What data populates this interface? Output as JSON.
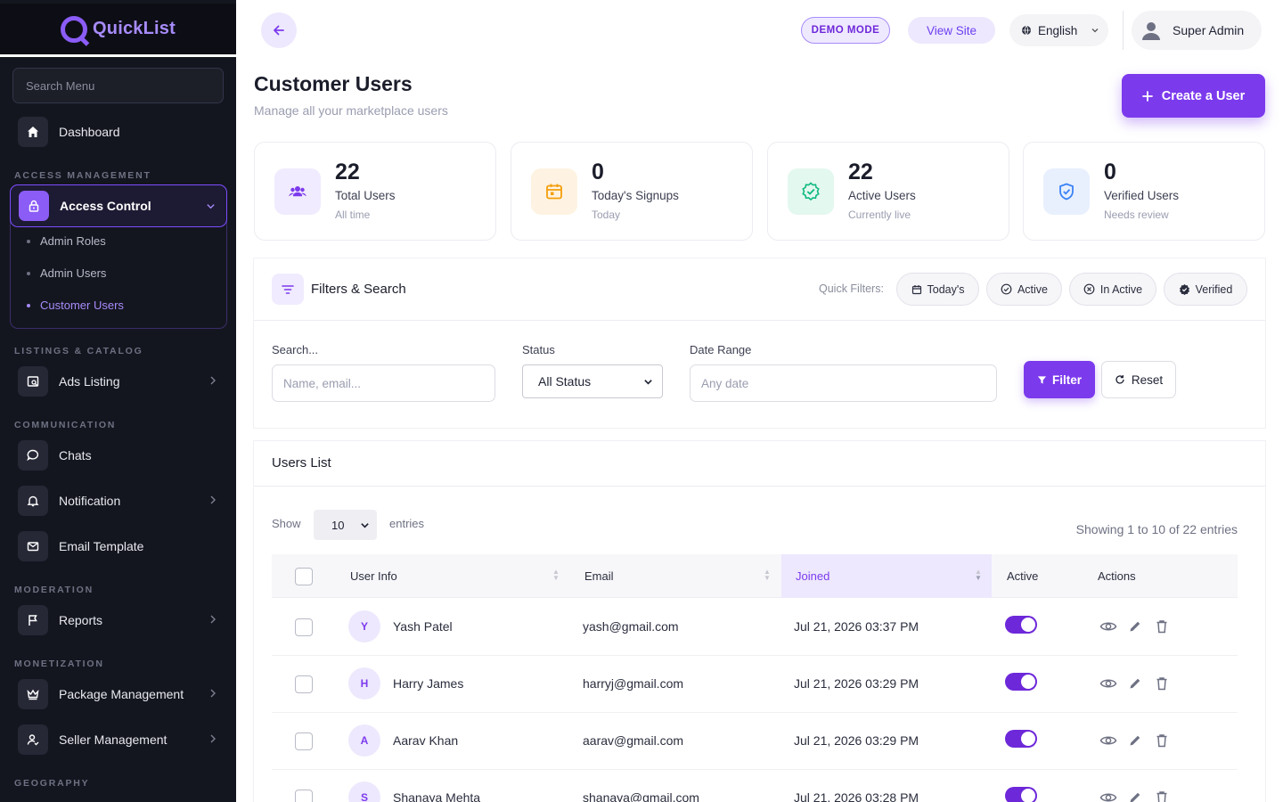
{
  "app": {
    "name": "QuickList"
  },
  "sidebar": {
    "search_placeholder": "Search Menu",
    "dashboard": "Dashboard",
    "sections": {
      "access": "ACCESS MANAGEMENT",
      "listings": "LISTINGS & CATALOG",
      "communication": "COMMUNICATION",
      "moderation": "MODERATION",
      "monetization": "MONETIZATION",
      "geography": "GEOGRAPHY"
    },
    "access_control": "Access Control",
    "sub_items": [
      "Admin Roles",
      "Admin Users",
      "Customer Users"
    ],
    "active_sub": "Customer Users",
    "items": {
      "ads_listing": "Ads Listing",
      "chats": "Chats",
      "notification": "Notification",
      "email_template": "Email Template",
      "reports": "Reports",
      "package_management": "Package Management",
      "seller_management": "Seller Management"
    }
  },
  "topbar": {
    "demo_mode": "DEMO MODE",
    "view_site": "View Site",
    "language": "English",
    "user_name": "Super Admin"
  },
  "header": {
    "title": "Customer Users",
    "subtitle": "Manage all your marketplace users",
    "create_button": "Create a User"
  },
  "stats": [
    {
      "value": "22",
      "label": "Total Users",
      "note": "All time",
      "icon": "users-icon",
      "color": "#7c3aed",
      "bg": "#f0ebfe"
    },
    {
      "value": "0",
      "label": "Today's Signups",
      "note": "Today",
      "icon": "calendar-icon",
      "color": "#f59e0b",
      "bg": "#fef3e2"
    },
    {
      "value": "22",
      "label": "Active Users",
      "note": "Currently live",
      "icon": "badge-check-icon",
      "color": "#10b981",
      "bg": "#e3f8ef"
    },
    {
      "value": "0",
      "label": "Verified Users",
      "note": "Needs review",
      "icon": "shield-check-icon",
      "color": "#3b82f6",
      "bg": "#e8f0fe"
    }
  ],
  "filters": {
    "title": "Filters & Search",
    "quick_label": "Quick Filters:",
    "quick": [
      "Today's",
      "Active",
      "In Active",
      "Verified"
    ],
    "search_label": "Search...",
    "search_placeholder": "Name, email...",
    "status_label": "Status",
    "status_value": "All Status",
    "date_label": "Date Range",
    "date_placeholder": "Any date",
    "filter_button": "Filter",
    "reset_button": "Reset"
  },
  "users_list": {
    "title": "Users List",
    "show_label": "Show",
    "entries_value": "10",
    "entries_label": "entries",
    "showing_info": "Showing 1 to 10 of 22 entries",
    "columns": [
      "User Info",
      "Email",
      "Joined",
      "Active",
      "Actions"
    ],
    "sorted_column": "Joined",
    "rows": [
      {
        "initial": "Y",
        "name": "Yash Patel",
        "email": "yash@gmail.com",
        "joined": "Jul 21, 2026 03:37 PM",
        "active": true
      },
      {
        "initial": "H",
        "name": "Harry James",
        "email": "harryj@gmail.com",
        "joined": "Jul 21, 2026 03:29 PM",
        "active": true
      },
      {
        "initial": "A",
        "name": "Aarav Khan",
        "email": "aarav@gmail.com",
        "joined": "Jul 21, 2026 03:29 PM",
        "active": true
      },
      {
        "initial": "S",
        "name": "Shanaya Mehta",
        "email": "shanaya@gmail.com",
        "joined": "Jul 21, 2026 03:28 PM",
        "active": true
      }
    ]
  },
  "colors": {
    "accent": "#7c3aed",
    "sidebar_bg": "#14161f"
  }
}
